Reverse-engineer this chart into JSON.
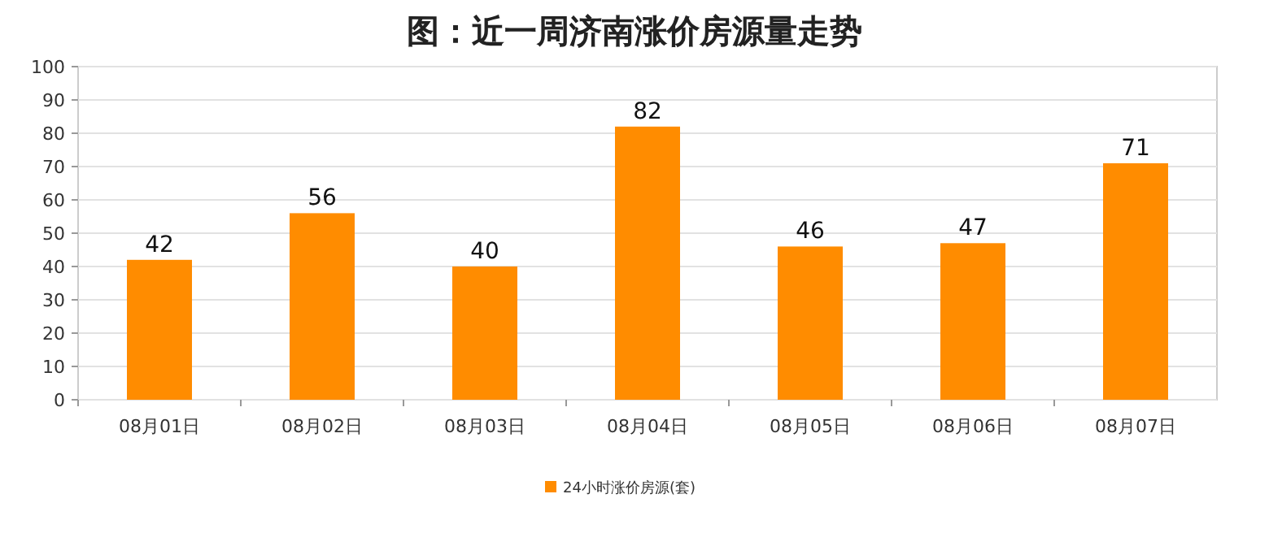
{
  "chart_data": {
    "type": "bar",
    "title": "图：近一周济南涨价房源量走势",
    "categories": [
      "08月01日",
      "08月02日",
      "08月03日",
      "08月04日",
      "08月05日",
      "08月06日",
      "08月07日"
    ],
    "series": [
      {
        "name": "24小时涨价房源(套)",
        "color": "#ff8c00",
        "values": [
          42,
          56,
          40,
          82,
          46,
          47,
          71
        ]
      }
    ],
    "ylim": [
      0,
      100
    ],
    "yticks": [
      0,
      10,
      20,
      30,
      40,
      50,
      60,
      70,
      80,
      90,
      100
    ],
    "grid": "y",
    "legend": "bottom",
    "data_labels": true
  }
}
